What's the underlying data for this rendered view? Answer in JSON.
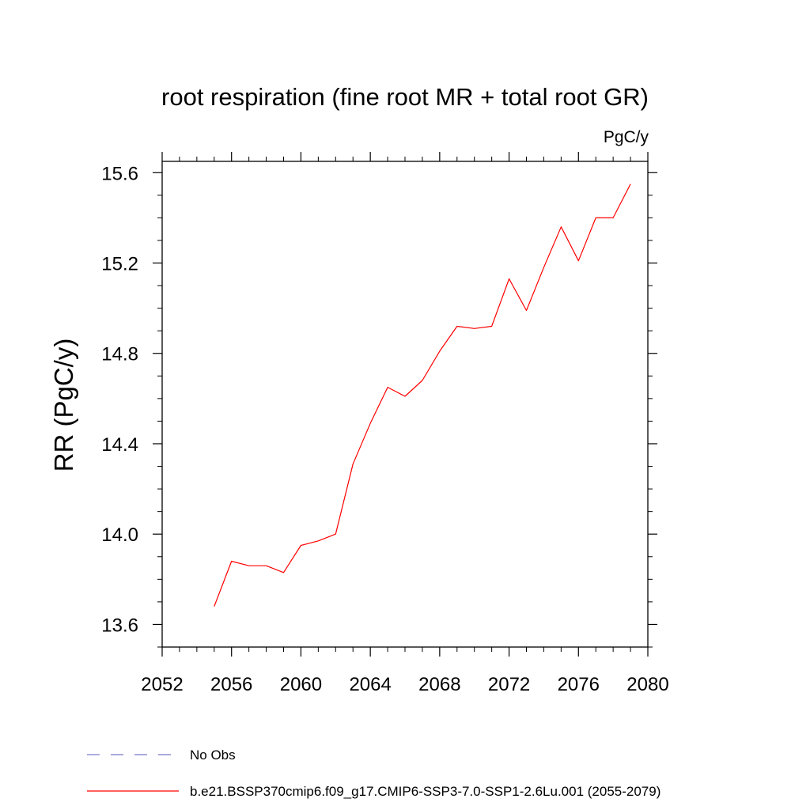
{
  "chart_data": {
    "type": "line",
    "title": "root respiration (fine root MR + total root GR)",
    "units_label": "PgC/y",
    "xlabel": "",
    "ylabel": "RR  (PgC/y)",
    "xlim": [
      2052,
      2080
    ],
    "ylim": [
      13.5,
      15.65
    ],
    "x_ticks": [
      2052,
      2056,
      2060,
      2064,
      2068,
      2072,
      2076,
      2080
    ],
    "y_ticks": [
      13.6,
      14.0,
      14.4,
      14.8,
      15.2,
      15.6
    ],
    "x_tick_labels": [
      "2052",
      "2056",
      "2060",
      "2064",
      "2068",
      "2072",
      "2076",
      "2080"
    ],
    "y_tick_labels": [
      "13.6",
      "14.0",
      "14.4",
      "14.8",
      "15.2",
      "15.6"
    ],
    "grid": false,
    "legend_position": "bottom",
    "series": [
      {
        "name": "b.e21.BSSP370cmip6.f09_g17.CMIP6-SSP3-7.0-SSP1-2.6Lu.001 (2055-2079)",
        "color": "#ff0000",
        "style": "solid",
        "x": [
          2055,
          2056,
          2057,
          2058,
          2059,
          2060,
          2061,
          2062,
          2063,
          2064,
          2065,
          2066,
          2067,
          2068,
          2069,
          2070,
          2071,
          2072,
          2073,
          2074,
          2075,
          2076,
          2077,
          2078,
          2079
        ],
        "y": [
          13.68,
          13.88,
          13.86,
          13.86,
          13.83,
          13.95,
          13.97,
          14.0,
          14.31,
          14.49,
          14.65,
          14.61,
          14.68,
          14.81,
          14.92,
          14.91,
          14.92,
          15.13,
          14.99,
          15.18,
          15.36,
          15.21,
          15.4,
          15.4,
          15.55
        ]
      }
    ],
    "legend": [
      {
        "label": "No Obs",
        "color": "#7777cc",
        "style": "dashed"
      },
      {
        "label": "b.e21.BSSP370cmip6.f09_g17.CMIP6-SSP3-7.0-SSP1-2.6Lu.001 (2055-2079)",
        "color": "#ff0000",
        "style": "solid"
      }
    ]
  }
}
